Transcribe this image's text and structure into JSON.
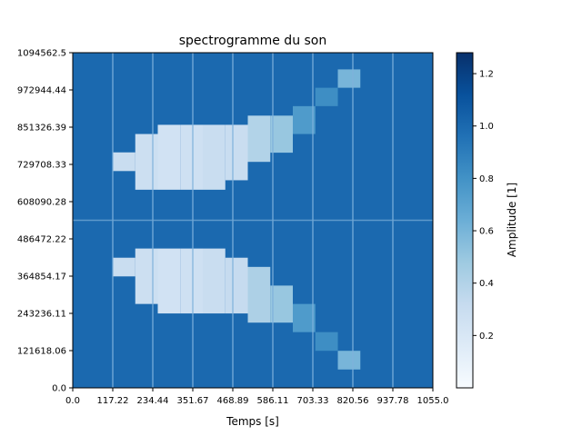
{
  "chart_data": {
    "type": "heatmap",
    "title": "spectrogramme du son",
    "xlabel": "Temps [s]",
    "ylabel": "",
    "xlim": [
      0,
      1055.0
    ],
    "ylim": [
      0,
      1094562.5
    ],
    "x_ticks": [
      "0.0",
      "117.22",
      "234.44",
      "351.67",
      "468.89",
      "586.11",
      "703.33",
      "820.56",
      "937.78",
      "1055.0"
    ],
    "y_ticks": [
      "0.0",
      "121618.06",
      "243236.11",
      "364854.17",
      "486472.22",
      "608090.28",
      "729708.33",
      "851326.39",
      "972944.44",
      "1094562.5"
    ],
    "colorbar": {
      "label": "Amplitude [1]",
      "range": [
        0.0,
        1.28
      ],
      "ticks": [
        "0.2",
        "0.4",
        "0.6",
        "0.8",
        "1.0",
        "1.2"
      ],
      "tick_values": [
        0.2,
        0.4,
        0.6,
        0.8,
        1.0,
        1.2
      ],
      "colormap": "Blues"
    },
    "grid": {
      "time_bins": 16,
      "freq_bins": 36,
      "background_amplitude": 1.0,
      "vertical_lines_x": [
        117.22,
        234.44,
        351.67,
        468.89,
        586.11,
        703.33,
        820.56,
        937.78
      ],
      "horizontal_line_y": 547281.25
    },
    "cells": [
      {
        "t": [
          117.22,
          183.16
        ],
        "f": [
          708000,
          769000
        ],
        "a": 0.3
      },
      {
        "t": [
          183.16,
          249.1
        ],
        "f": [
          647000,
          829000
        ],
        "a": 0.28
      },
      {
        "t": [
          249.1,
          315.03
        ],
        "f": [
          647000,
          859000
        ],
        "a": 0.25
      },
      {
        "t": [
          315.03,
          380.97
        ],
        "f": [
          647000,
          859000
        ],
        "a": 0.27
      },
      {
        "t": [
          380.97,
          446.91
        ],
        "f": [
          647000,
          859000
        ],
        "a": 0.3
      },
      {
        "t": [
          446.91,
          512.84
        ],
        "f": [
          678000,
          859000
        ],
        "a": 0.3
      },
      {
        "t": [
          512.84,
          578.78
        ],
        "f": [
          738000,
          889000
        ],
        "a": 0.4
      },
      {
        "t": [
          578.78,
          644.72
        ],
        "f": [
          768000,
          889000
        ],
        "a": 0.5
      },
      {
        "t": [
          644.72,
          710.66
        ],
        "f": [
          829000,
          920000
        ],
        "a": 0.75
      },
      {
        "t": [
          710.66,
          776.59
        ],
        "f": [
          920000,
          980000
        ],
        "a": 0.82
      },
      {
        "t": [
          776.59,
          842.53
        ],
        "f": [
          980000,
          1040000
        ],
        "a": 0.6
      },
      {
        "t": [
          117.22,
          183.16
        ],
        "f": [
          364000,
          425000
        ],
        "a": 0.3
      },
      {
        "t": [
          183.16,
          249.1
        ],
        "f": [
          274000,
          455000
        ],
        "a": 0.28
      },
      {
        "t": [
          249.1,
          315.03
        ],
        "f": [
          243000,
          455000
        ],
        "a": 0.25
      },
      {
        "t": [
          315.03,
          380.97
        ],
        "f": [
          243000,
          455000
        ],
        "a": 0.27
      },
      {
        "t": [
          380.97,
          446.91
        ],
        "f": [
          243000,
          455000
        ],
        "a": 0.3
      },
      {
        "t": [
          446.91,
          512.84
        ],
        "f": [
          243000,
          425000
        ],
        "a": 0.32
      },
      {
        "t": [
          512.84,
          578.78
        ],
        "f": [
          213000,
          395000
        ],
        "a": 0.42
      },
      {
        "t": [
          578.78,
          644.72
        ],
        "f": [
          213000,
          334000
        ],
        "a": 0.5
      },
      {
        "t": [
          644.72,
          710.66
        ],
        "f": [
          182000,
          274000
        ],
        "a": 0.75
      },
      {
        "t": [
          710.66,
          776.59
        ],
        "f": [
          121000,
          182000
        ],
        "a": 0.82
      },
      {
        "t": [
          776.59,
          842.53
        ],
        "f": [
          60000,
          121000
        ],
        "a": 0.6
      }
    ]
  }
}
